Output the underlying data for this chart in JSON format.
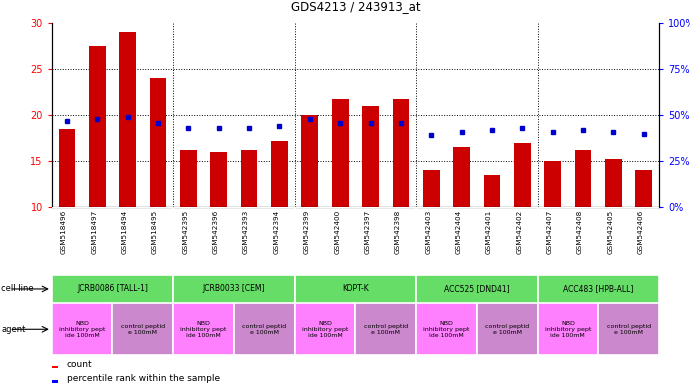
{
  "title": "GDS4213 / 243913_at",
  "samples": [
    "GSM518496",
    "GSM518497",
    "GSM518494",
    "GSM518495",
    "GSM542395",
    "GSM542396",
    "GSM542393",
    "GSM542394",
    "GSM542399",
    "GSM542400",
    "GSM542397",
    "GSM542398",
    "GSM542403",
    "GSM542404",
    "GSM542401",
    "GSM542402",
    "GSM542407",
    "GSM542408",
    "GSM542405",
    "GSM542406"
  ],
  "counts": [
    18.5,
    27.5,
    29.0,
    24.0,
    16.2,
    16.0,
    16.2,
    17.2,
    20.0,
    21.8,
    21.0,
    21.8,
    14.0,
    16.5,
    13.5,
    17.0,
    15.0,
    16.2,
    15.2,
    14.0
  ],
  "percentile_vals": [
    47,
    48,
    49,
    46,
    43,
    43,
    43,
    44,
    48,
    46,
    46,
    46,
    39,
    41,
    42,
    43,
    41,
    42,
    41,
    40
  ],
  "cell_lines": [
    {
      "label": "JCRB0086 [TALL-1]",
      "start": 0,
      "end": 4,
      "color": "#66dd66"
    },
    {
      "label": "JCRB0033 [CEM]",
      "start": 4,
      "end": 8,
      "color": "#66dd66"
    },
    {
      "label": "KOPT-K",
      "start": 8,
      "end": 12,
      "color": "#66dd66"
    },
    {
      "label": "ACC525 [DND41]",
      "start": 12,
      "end": 16,
      "color": "#66dd66"
    },
    {
      "label": "ACC483 [HPB-ALL]",
      "start": 16,
      "end": 20,
      "color": "#66dd66"
    }
  ],
  "agents": [
    {
      "label": "NBD\ninhibitory pept\nide 100mM",
      "start": 0,
      "end": 2,
      "color": "#ff80ff"
    },
    {
      "label": "control peptid\ne 100mM",
      "start": 2,
      "end": 4,
      "color": "#cc88cc"
    },
    {
      "label": "NBD\ninhibitory pept\nide 100mM",
      "start": 4,
      "end": 6,
      "color": "#ff80ff"
    },
    {
      "label": "control peptid\ne 100mM",
      "start": 6,
      "end": 8,
      "color": "#cc88cc"
    },
    {
      "label": "NBD\ninhibitory pept\nide 100mM",
      "start": 8,
      "end": 10,
      "color": "#ff80ff"
    },
    {
      "label": "control peptid\ne 100mM",
      "start": 10,
      "end": 12,
      "color": "#cc88cc"
    },
    {
      "label": "NBD\ninhibitory pept\nide 100mM",
      "start": 12,
      "end": 14,
      "color": "#ff80ff"
    },
    {
      "label": "control peptid\ne 100mM",
      "start": 14,
      "end": 16,
      "color": "#cc88cc"
    },
    {
      "label": "NBD\ninhibitory pept\nide 100mM",
      "start": 16,
      "end": 18,
      "color": "#ff80ff"
    },
    {
      "label": "control peptid\ne 100mM",
      "start": 18,
      "end": 20,
      "color": "#cc88cc"
    }
  ],
  "ylim": [
    10,
    30
  ],
  "yticks_left": [
    10,
    15,
    20,
    25,
    30
  ],
  "yticks_right": [
    0,
    25,
    50,
    75,
    100
  ],
  "bar_color": "#cc0000",
  "dot_color": "#0000cc",
  "background_plot": "#ffffff",
  "grid_color": "#000000",
  "table_bg": "#d0d0d0"
}
